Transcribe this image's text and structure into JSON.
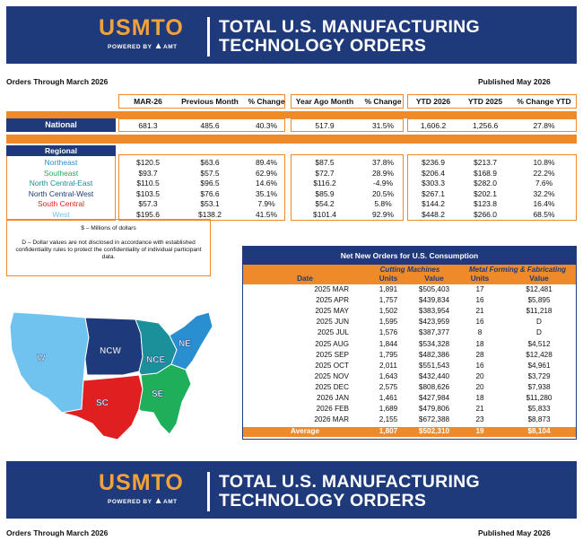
{
  "header": {
    "logo": "USMTO",
    "powered": "POWERED BY",
    "powered_brand": "AMT",
    "title_line1": "TOTAL U.S. MANUFACTURING",
    "title_line2": "TECHNOLOGY ORDERS",
    "orders_through": "Orders Through March 2026",
    "published": "Published May 2026"
  },
  "columns": [
    "MAR-26",
    "Previous Month",
    "% Change",
    "Year Ago Month",
    "% Change",
    "YTD 2026",
    "YTD 2025",
    "% Change YTD"
  ],
  "national": {
    "label": "National",
    "values": [
      "681.3",
      "485.6",
      "40.3%",
      "517.9",
      "31.5%",
      "1,606.2",
      "1,256.6",
      "27.8%"
    ]
  },
  "regional_label": "Regional",
  "regions": [
    {
      "name": "Northeast",
      "color": "#2a8fd0",
      "values": [
        "$120.5",
        "$63.6",
        "89.4%",
        "$87.5",
        "37.8%",
        "$236.9",
        "$213.7",
        "10.8%"
      ]
    },
    {
      "name": "Southeast",
      "color": "#1fae5a",
      "values": [
        "$93.7",
        "$57.5",
        "62.9%",
        "$72.7",
        "28.9%",
        "$206.4",
        "$168.9",
        "22.2%"
      ]
    },
    {
      "name": "North Central-East",
      "color": "#1b8f9a",
      "values": [
        "$110.5",
        "$96.5",
        "14.6%",
        "$116.2",
        "-4.9%",
        "$303.3",
        "$282.0",
        "7.6%"
      ]
    },
    {
      "name": "North Central-West",
      "color": "#1f3a7a",
      "values": [
        "$103.5",
        "$76.6",
        "35.1%",
        "$85.9",
        "20.5%",
        "$267.1",
        "$202.1",
        "32.2%"
      ]
    },
    {
      "name": "South Central",
      "color": "#e02020",
      "values": [
        "$57.3",
        "$53.1",
        "7.9%",
        "$54.2",
        "5.8%",
        "$144.2",
        "$123.8",
        "16.4%"
      ]
    },
    {
      "name": "West",
      "color": "#6fc3ee",
      "values": [
        "$195.6",
        "$138.2",
        "41.5%",
        "$101.4",
        "92.9%",
        "$448.2",
        "$266.0",
        "68.5%"
      ]
    }
  ],
  "notes": {
    "line1": "$ – Millions of dollars",
    "line2": "D – Dollar values are not disclosed in accordance with established confidentiality rules to protect the confidentiality of individual participant data."
  },
  "map": {
    "labels": [
      "W",
      "NCW",
      "NCE",
      "NE",
      "SC",
      "SE"
    ]
  },
  "orders_table": {
    "title": "Net New Orders for U.S. Consumption",
    "group1": "Cutting Machines",
    "group2": "Metal Forming & Fabricating",
    "cols": [
      "Date",
      "Units",
      "Value",
      "Units",
      "Value"
    ],
    "rows": [
      [
        "2025 MAR",
        "1,891",
        "$505,403",
        "17",
        "$12,481"
      ],
      [
        "2025 APR",
        "1,757",
        "$439,834",
        "16",
        "$5,895"
      ],
      [
        "2025 MAY",
        "1,502",
        "$383,954",
        "21",
        "$11,218"
      ],
      [
        "2025 JUN",
        "1,595",
        "$423,959",
        "16",
        "D"
      ],
      [
        "2025 JUL",
        "1,576",
        "$387,377",
        "8",
        "D"
      ],
      [
        "2025 AUG",
        "1,844",
        "$534,328",
        "18",
        "$4,512"
      ],
      [
        "2025 SEP",
        "1,795",
        "$482,386",
        "28",
        "$12,428"
      ],
      [
        "2025 OCT",
        "2,011",
        "$551,543",
        "16",
        "$4,961"
      ],
      [
        "2025 NOV",
        "1,643",
        "$432,440",
        "20",
        "$3,729"
      ],
      [
        "2025 DEC",
        "2,575",
        "$808,626",
        "20",
        "$7,938"
      ],
      [
        "2026 JAN",
        "1,461",
        "$427,984",
        "18",
        "$11,280"
      ],
      [
        "2026 FEB",
        "1,689",
        "$479,806",
        "21",
        "$5,833"
      ],
      [
        "2026 MAR",
        "2,155",
        "$672,388",
        "23",
        "$8,873"
      ]
    ],
    "average": [
      "Average",
      "1,807",
      "$502,310",
      "19",
      "$8,104"
    ]
  },
  "colors": {
    "navy": "#1f3a7a",
    "orange": "#ef8a2a",
    "gold": "#f2a23a"
  }
}
